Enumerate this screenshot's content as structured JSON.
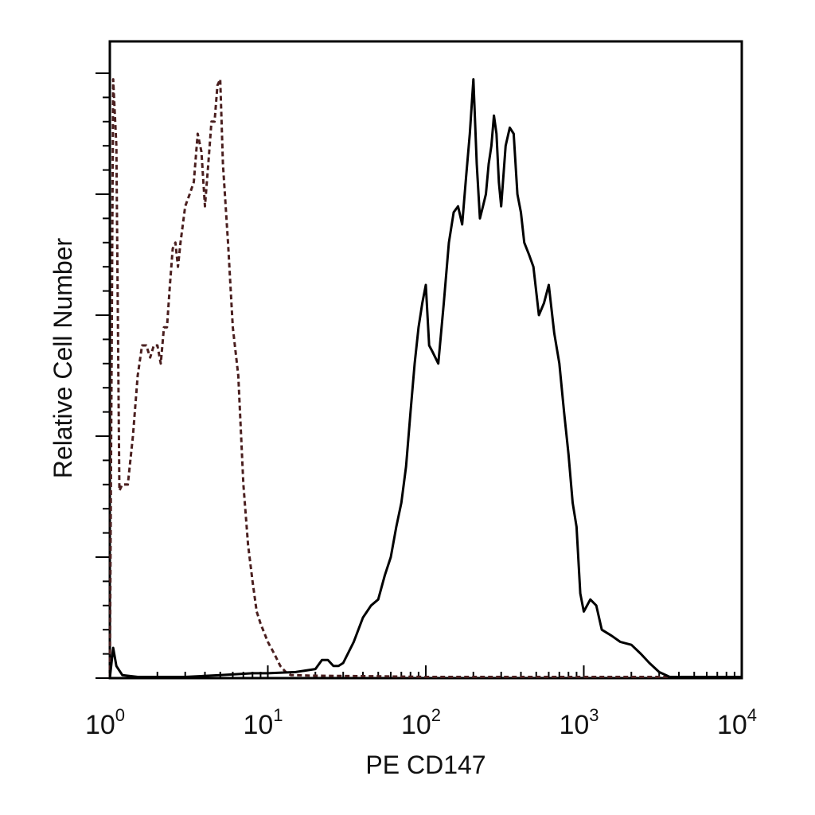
{
  "chart_data": {
    "type": "line",
    "xlabel": "PE CD147",
    "ylabel": "Relative Cell Number",
    "x_scale": "log",
    "xlim": [
      1,
      10000
    ],
    "ylim": [
      0,
      1
    ],
    "grid": false,
    "x_tick_labels": [
      {
        "base": "10",
        "exp": "0",
        "value": 1
      },
      {
        "base": "10",
        "exp": "1",
        "value": 10
      },
      {
        "base": "10",
        "exp": "2",
        "value": 100
      },
      {
        "base": "10",
        "exp": "3",
        "value": 1000
      },
      {
        "base": "10",
        "exp": "4",
        "value": 10000
      }
    ],
    "series": [
      {
        "style": "dashed",
        "color": "#4a1f1f",
        "x": [
          1.0,
          1.05,
          1.1,
          1.15,
          1.2,
          1.3,
          1.4,
          1.5,
          1.6,
          1.7,
          1.8,
          1.9,
          2.0,
          2.1,
          2.2,
          2.3,
          2.4,
          2.5,
          2.6,
          2.7,
          2.8,
          3.0,
          3.2,
          3.4,
          3.6,
          3.8,
          4.0,
          4.2,
          4.4,
          4.6,
          4.8,
          5.0,
          5.2,
          5.6,
          6.0,
          6.5,
          7.0,
          7.5,
          8.0,
          8.5,
          9.0,
          10.0,
          11.0,
          12.0,
          13.0,
          14.0,
          20,
          50,
          100,
          500,
          1000,
          3000,
          10000
        ],
        "y": [
          0.0,
          0.99,
          0.88,
          0.31,
          0.32,
          0.32,
          0.4,
          0.5,
          0.55,
          0.55,
          0.53,
          0.55,
          0.55,
          0.52,
          0.58,
          0.58,
          0.65,
          0.71,
          0.72,
          0.68,
          0.72,
          0.78,
          0.8,
          0.82,
          0.9,
          0.87,
          0.78,
          0.85,
          0.92,
          0.92,
          0.98,
          0.99,
          0.85,
          0.72,
          0.58,
          0.5,
          0.32,
          0.22,
          0.16,
          0.11,
          0.09,
          0.06,
          0.04,
          0.02,
          0.01,
          0.005,
          0.004,
          0.003,
          0.002,
          0.002,
          0.002,
          0.002,
          0.002
        ]
      },
      {
        "style": "solid",
        "color": "#000000",
        "x": [
          1.0,
          1.05,
          1.1,
          1.2,
          1.5,
          2,
          3,
          5,
          8,
          10,
          15,
          20,
          22,
          24,
          26,
          28,
          30,
          35,
          40,
          45,
          50,
          55,
          60,
          65,
          70,
          75,
          80,
          85,
          90,
          95,
          100,
          105,
          110,
          120,
          130,
          140,
          150,
          160,
          170,
          180,
          190,
          200,
          210,
          220,
          230,
          240,
          250,
          260,
          270,
          280,
          290,
          300,
          320,
          340,
          360,
          380,
          400,
          420,
          450,
          480,
          520,
          560,
          600,
          650,
          700,
          750,
          800,
          850,
          900,
          950,
          1000,
          1100,
          1200,
          1300,
          1500,
          1700,
          2000,
          2300,
          2600,
          3000,
          3500,
          10000
        ],
        "y": [
          0.0,
          0.05,
          0.02,
          0.005,
          0.002,
          0.002,
          0.002,
          0.005,
          0.008,
          0.008,
          0.01,
          0.015,
          0.03,
          0.03,
          0.02,
          0.02,
          0.025,
          0.06,
          0.1,
          0.12,
          0.13,
          0.17,
          0.2,
          0.25,
          0.29,
          0.35,
          0.44,
          0.52,
          0.58,
          0.62,
          0.65,
          0.55,
          0.54,
          0.52,
          0.62,
          0.72,
          0.77,
          0.78,
          0.75,
          0.83,
          0.9,
          0.99,
          0.85,
          0.76,
          0.78,
          0.8,
          0.85,
          0.88,
          0.93,
          0.9,
          0.82,
          0.78,
          0.88,
          0.91,
          0.9,
          0.8,
          0.77,
          0.72,
          0.7,
          0.68,
          0.6,
          0.62,
          0.65,
          0.57,
          0.52,
          0.44,
          0.37,
          0.29,
          0.25,
          0.14,
          0.11,
          0.13,
          0.12,
          0.08,
          0.07,
          0.06,
          0.055,
          0.04,
          0.025,
          0.01,
          0.002,
          0.002
        ]
      }
    ]
  }
}
